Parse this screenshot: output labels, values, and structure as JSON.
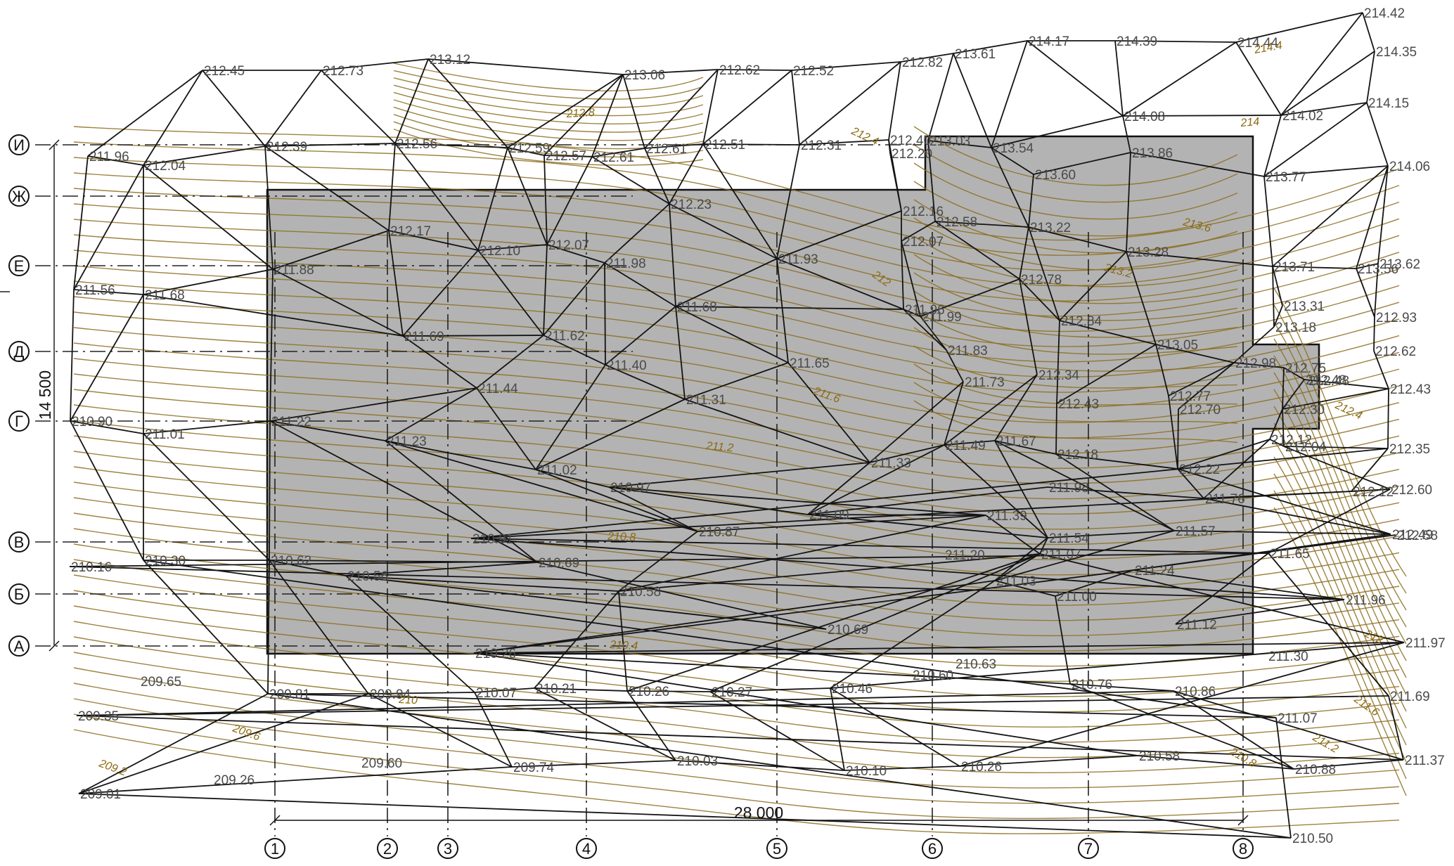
{
  "colors": {
    "building_fill": "#b3b3b3",
    "tin": "#141414",
    "contour": "#8c6d1f",
    "contour_label": "#8a6a10",
    "text": "#4a4a4a"
  },
  "dimensions": {
    "horizontal": "28 000",
    "vertical": "14 500"
  },
  "axes": {
    "rows": [
      "И",
      "Ж",
      "Е",
      "Д",
      "Г",
      "В",
      "Б",
      "А"
    ],
    "cols": [
      "1",
      "2",
      "3",
      "4",
      "5",
      "6",
      "7",
      "8"
    ]
  },
  "contour_labels": [
    "214.4",
    "214",
    "213.6",
    "213.2",
    "212.8",
    "212.4",
    "212",
    "211.6",
    "211.2",
    "210.8",
    "210.4",
    "210",
    "209.6",
    "209.2",
    "212.4",
    "212",
    "211.6",
    "211.2",
    "210.8"
  ],
  "points": [
    {
      "v": "214.42"
    },
    {
      "v": "214.35"
    },
    {
      "v": "214.15"
    },
    {
      "v": "214.06"
    },
    {
      "v": "214.44"
    },
    {
      "v": "214.39"
    },
    {
      "v": "214.17"
    },
    {
      "v": "213.61"
    },
    {
      "v": "212.82"
    },
    {
      "v": "212.52"
    },
    {
      "v": "212.62"
    },
    {
      "v": "213.06"
    },
    {
      "v": "213.12"
    },
    {
      "v": "212.73"
    },
    {
      "v": "212.45"
    },
    {
      "v": "211.96"
    },
    {
      "v": "212.04"
    },
    {
      "v": "212.39"
    },
    {
      "v": "212.56"
    },
    {
      "v": "212.59"
    },
    {
      "v": "212.57"
    },
    {
      "v": "212.61"
    },
    {
      "v": "212.61"
    },
    {
      "v": "212.51"
    },
    {
      "v": "212.31"
    },
    {
      "v": "212.40"
    },
    {
      "v": "212.20"
    },
    {
      "v": "213.03"
    },
    {
      "v": "213.54"
    },
    {
      "v": "214.08"
    },
    {
      "v": "214.02"
    },
    {
      "v": "213.60"
    },
    {
      "v": "213.86"
    },
    {
      "v": "213.77"
    },
    {
      "v": "212.23"
    },
    {
      "v": "212.16"
    },
    {
      "v": "212.58"
    },
    {
      "v": "213.22"
    },
    {
      "v": "212.17"
    },
    {
      "v": "212.10"
    },
    {
      "v": "212.07"
    },
    {
      "v": "211.98"
    },
    {
      "v": "211.93"
    },
    {
      "v": "212.07"
    },
    {
      "v": "213.28"
    },
    {
      "v": "213.71"
    },
    {
      "v": "213.56"
    },
    {
      "v": "213.62"
    },
    {
      "v": "211.56"
    },
    {
      "v": "211.68"
    },
    {
      "v": "211.88"
    },
    {
      "v": "211.68"
    },
    {
      "v": "211.96"
    },
    {
      "v": "211.99"
    },
    {
      "v": "212.78"
    },
    {
      "v": "212.84"
    },
    {
      "v": "213.31"
    },
    {
      "v": "212.93"
    },
    {
      "v": "213.18"
    },
    {
      "v": "212.62"
    },
    {
      "v": "211.69"
    },
    {
      "v": "211.62"
    },
    {
      "v": "211.40"
    },
    {
      "v": "211.65"
    },
    {
      "v": "211.83"
    },
    {
      "v": "213.05"
    },
    {
      "v": "212.98"
    },
    {
      "v": "212.75"
    },
    {
      "v": "212.48"
    },
    {
      "v": "212.43"
    },
    {
      "v": "212.48"
    },
    {
      "v": "211.44"
    },
    {
      "v": "211.31"
    },
    {
      "v": "211.73"
    },
    {
      "v": "212.34"
    },
    {
      "v": "212.43"
    },
    {
      "v": "212.77"
    },
    {
      "v": "212.70"
    },
    {
      "v": "212.30"
    },
    {
      "v": "210.90"
    },
    {
      "v": "211.01"
    },
    {
      "v": "211.22"
    },
    {
      "v": "211.23"
    },
    {
      "v": "211.02"
    },
    {
      "v": "210.97"
    },
    {
      "v": "211.33"
    },
    {
      "v": "211.49"
    },
    {
      "v": "211.67"
    },
    {
      "v": "212.18"
    },
    {
      "v": "212.22"
    },
    {
      "v": "212.12"
    },
    {
      "v": "212.04"
    },
    {
      "v": "212.35"
    },
    {
      "v": "211.09"
    },
    {
      "v": "211.98"
    },
    {
      "v": "211.76"
    },
    {
      "v": "212.12"
    },
    {
      "v": "212.60"
    },
    {
      "v": "210.91"
    },
    {
      "v": "210.87"
    },
    {
      "v": "211.39"
    },
    {
      "v": "211.54"
    },
    {
      "v": "211.57"
    },
    {
      "v": "212.49"
    },
    {
      "v": "212.58"
    },
    {
      "v": "210.16"
    },
    {
      "v": "210.30"
    },
    {
      "v": "210.62"
    },
    {
      "v": "210.69"
    },
    {
      "v": "211.20"
    },
    {
      "v": "211.07"
    },
    {
      "v": "211.65"
    },
    {
      "v": "210.56"
    },
    {
      "v": "210.58"
    },
    {
      "v": "211.03"
    },
    {
      "v": "211.00"
    },
    {
      "v": "211.24"
    },
    {
      "v": "211.96"
    },
    {
      "v": "210.69"
    },
    {
      "v": "211.12"
    },
    {
      "v": "211.97"
    },
    {
      "v": "210.26"
    },
    {
      "v": "210.60"
    },
    {
      "v": "210.63"
    },
    {
      "v": "211.30"
    },
    {
      "v": "209.65"
    },
    {
      "v": "209.81"
    },
    {
      "v": "209.94"
    },
    {
      "v": "210.07"
    },
    {
      "v": "210.21"
    },
    {
      "v": "210.26"
    },
    {
      "v": "210.27"
    },
    {
      "v": "210.46"
    },
    {
      "v": "210.76"
    },
    {
      "v": "210.86"
    },
    {
      "v": "211.69"
    },
    {
      "v": "209.35"
    },
    {
      "v": "211.07"
    },
    {
      "v": "209.60"
    },
    {
      "v": "209.74"
    },
    {
      "v": "210.03"
    },
    {
      "v": "210.10"
    },
    {
      "v": "210.26"
    },
    {
      "v": "210.58"
    },
    {
      "v": "210.88"
    },
    {
      "v": "211.37"
    },
    {
      "v": "209.26"
    },
    {
      "v": "209.01"
    },
    {
      "v": "210.50"
    }
  ]
}
